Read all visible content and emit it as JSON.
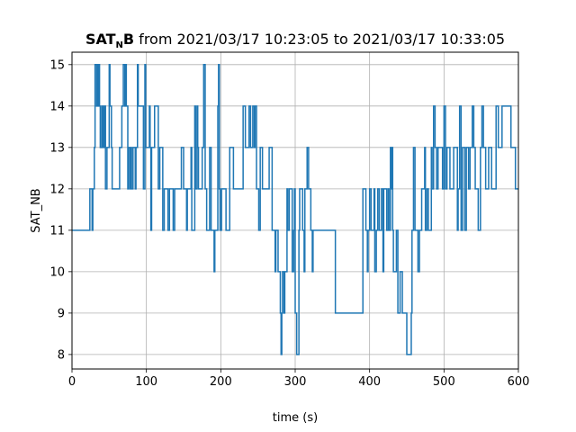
{
  "chart_data": {
    "type": "line",
    "title": {
      "bold": "SAT",
      "subscript": "N",
      "bold_suffix": "B",
      "rest": " from 2021/03/17 10:23:05 to 2021/03/17 10:33:05"
    },
    "xlabel": "time (s)",
    "ylabel": "SAT_NB",
    "xlim": [
      0,
      600
    ],
    "ylim": [
      7.65,
      15.3
    ],
    "xticks": [
      0,
      100,
      200,
      300,
      400,
      500,
      600
    ],
    "yticks": [
      8,
      9,
      10,
      11,
      12,
      13,
      14,
      15
    ],
    "grid": true,
    "step": "post",
    "series": [
      {
        "color": "#1f77b4",
        "points": [
          [
            0,
            11
          ],
          [
            24,
            12
          ],
          [
            27,
            11
          ],
          [
            28,
            12
          ],
          [
            30,
            13
          ],
          [
            31,
            15
          ],
          [
            33,
            14
          ],
          [
            34,
            15
          ],
          [
            35,
            14
          ],
          [
            36,
            15
          ],
          [
            37,
            14
          ],
          [
            38,
            13
          ],
          [
            40,
            14
          ],
          [
            41,
            13
          ],
          [
            42,
            14
          ],
          [
            43,
            13
          ],
          [
            44,
            14
          ],
          [
            45,
            12
          ],
          [
            47,
            13
          ],
          [
            50,
            15
          ],
          [
            51,
            14
          ],
          [
            53,
            13
          ],
          [
            54,
            12
          ],
          [
            64,
            13
          ],
          [
            67,
            14
          ],
          [
            69,
            15
          ],
          [
            71,
            14
          ],
          [
            72,
            15
          ],
          [
            73,
            14
          ],
          [
            75,
            12
          ],
          [
            76,
            13
          ],
          [
            78,
            12
          ],
          [
            79,
            13
          ],
          [
            80,
            12
          ],
          [
            82,
            13
          ],
          [
            85,
            12
          ],
          [
            86,
            13
          ],
          [
            88,
            15
          ],
          [
            89,
            14
          ],
          [
            96,
            12
          ],
          [
            98,
            15
          ],
          [
            99,
            13
          ],
          [
            104,
            14
          ],
          [
            105,
            13
          ],
          [
            106,
            11
          ],
          [
            107,
            13
          ],
          [
            111,
            14
          ],
          [
            116,
            12
          ],
          [
            118,
            13
          ],
          [
            122,
            11
          ],
          [
            124,
            12
          ],
          [
            129,
            11
          ],
          [
            131,
            12
          ],
          [
            136,
            11
          ],
          [
            138,
            12
          ],
          [
            147,
            13
          ],
          [
            150,
            12
          ],
          [
            154,
            11
          ],
          [
            155,
            12
          ],
          [
            160,
            13
          ],
          [
            161,
            11
          ],
          [
            165,
            14
          ],
          [
            166,
            12
          ],
          [
            168,
            14
          ],
          [
            169,
            13
          ],
          [
            170,
            12
          ],
          [
            175,
            13
          ],
          [
            177,
            15
          ],
          [
            179,
            12
          ],
          [
            181,
            11
          ],
          [
            185,
            13
          ],
          [
            187,
            11
          ],
          [
            191,
            10
          ],
          [
            192,
            11
          ],
          [
            196,
            14
          ],
          [
            197,
            15
          ],
          [
            198,
            12
          ],
          [
            199,
            11
          ],
          [
            201,
            12
          ],
          [
            207,
            11
          ],
          [
            212,
            13
          ],
          [
            217,
            12
          ],
          [
            223,
            12
          ],
          [
            230,
            14
          ],
          [
            233,
            13
          ],
          [
            238,
            14
          ],
          [
            240,
            13
          ],
          [
            243,
            14
          ],
          [
            245,
            13
          ],
          [
            246,
            14
          ],
          [
            248,
            12
          ],
          [
            251,
            11
          ],
          [
            253,
            13
          ],
          [
            256,
            12
          ],
          [
            265,
            13
          ],
          [
            269,
            11
          ],
          [
            273,
            10
          ],
          [
            274,
            11
          ],
          [
            277,
            10
          ],
          [
            280,
            9
          ],
          [
            281,
            8
          ],
          [
            282,
            9
          ],
          [
            283,
            10
          ],
          [
            285,
            9
          ],
          [
            286,
            10
          ],
          [
            289,
            12
          ],
          [
            290,
            11
          ],
          [
            292,
            12
          ],
          [
            296,
            10
          ],
          [
            298,
            11
          ],
          [
            299,
            12
          ],
          [
            300,
            9
          ],
          [
            302,
            8
          ],
          [
            305,
            11
          ],
          [
            306,
            12
          ],
          [
            310,
            11
          ],
          [
            312,
            10
          ],
          [
            313,
            12
          ],
          [
            316,
            13
          ],
          [
            318,
            12
          ],
          [
            321,
            11
          ],
          [
            323,
            10
          ],
          [
            324,
            11
          ],
          [
            354,
            9
          ],
          [
            391,
            12
          ],
          [
            395,
            11
          ],
          [
            397,
            10
          ],
          [
            398,
            11
          ],
          [
            400,
            12
          ],
          [
            402,
            11
          ],
          [
            406,
            12
          ],
          [
            407,
            10
          ],
          [
            409,
            11
          ],
          [
            411,
            12
          ],
          [
            413,
            11
          ],
          [
            416,
            12
          ],
          [
            418,
            10
          ],
          [
            419,
            12
          ],
          [
            423,
            11
          ],
          [
            425,
            12
          ],
          [
            426,
            11
          ],
          [
            428,
            13
          ],
          [
            429,
            12
          ],
          [
            430,
            13
          ],
          [
            431,
            11
          ],
          [
            432,
            10
          ],
          [
            436,
            11
          ],
          [
            438,
            9
          ],
          [
            441,
            10
          ],
          [
            444,
            9
          ],
          [
            450,
            8
          ],
          [
            456,
            9
          ],
          [
            457,
            11
          ],
          [
            459,
            13
          ],
          [
            461,
            11
          ],
          [
            465,
            10
          ],
          [
            467,
            11
          ],
          [
            470,
            12
          ],
          [
            474,
            13
          ],
          [
            475,
            11
          ],
          [
            477,
            12
          ],
          [
            479,
            11
          ],
          [
            483,
            13
          ],
          [
            484,
            12
          ],
          [
            486,
            14
          ],
          [
            488,
            13
          ],
          [
            490,
            12
          ],
          [
            492,
            13
          ],
          [
            498,
            12
          ],
          [
            500,
            14
          ],
          [
            502,
            12
          ],
          [
            504,
            13
          ],
          [
            508,
            12
          ],
          [
            513,
            13
          ],
          [
            518,
            11
          ],
          [
            519,
            12
          ],
          [
            521,
            14
          ],
          [
            523,
            11
          ],
          [
            525,
            13
          ],
          [
            528,
            11
          ],
          [
            530,
            13
          ],
          [
            533,
            12
          ],
          [
            535,
            13
          ],
          [
            538,
            14
          ],
          [
            540,
            13
          ],
          [
            542,
            12
          ],
          [
            546,
            11
          ],
          [
            549,
            13
          ],
          [
            551,
            14
          ],
          [
            553,
            13
          ],
          [
            556,
            12
          ],
          [
            560,
            13
          ],
          [
            564,
            12
          ],
          [
            570,
            14
          ],
          [
            573,
            13
          ],
          [
            578,
            14
          ],
          [
            582,
            14
          ],
          [
            590,
            13
          ],
          [
            596,
            12
          ],
          [
            600,
            12
          ]
        ]
      }
    ]
  }
}
